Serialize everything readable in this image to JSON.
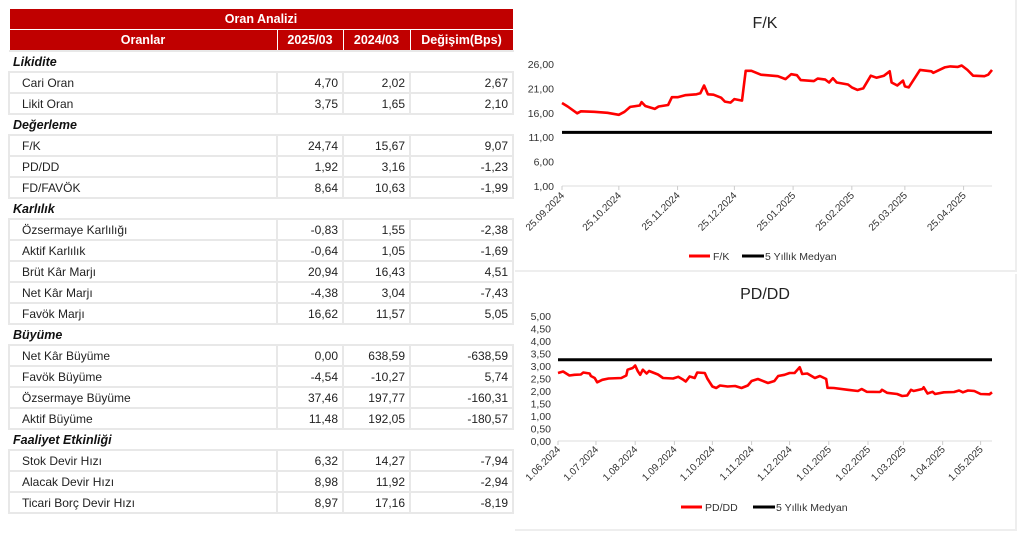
{
  "table": {
    "title": "Oran Analizi",
    "headers": [
      "Oranlar",
      "2025/03",
      "2024/03",
      "Değişim(Bps)"
    ],
    "rows": [
      {
        "section": "Likidite"
      },
      {
        "label": "Cari Oran",
        "values": [
          "4,70",
          "2,02",
          "2,67"
        ]
      },
      {
        "label": "Likit Oran",
        "values": [
          "3,75",
          "1,65",
          "2,10"
        ]
      },
      {
        "section": "Değerleme"
      },
      {
        "label": "F/K",
        "values": [
          "24,74",
          "15,67",
          "9,07"
        ]
      },
      {
        "label": "PD/DD",
        "values": [
          "1,92",
          "3,16",
          "-1,23"
        ]
      },
      {
        "label": "FD/FAVÖK",
        "values": [
          "8,64",
          "10,63",
          "-1,99"
        ]
      },
      {
        "section": "Karlılık"
      },
      {
        "label": "Özsermaye Karlılığı",
        "values": [
          "-0,83",
          "1,55",
          "-2,38"
        ]
      },
      {
        "label": "Aktif Karlılık",
        "values": [
          "-0,64",
          "1,05",
          "-1,69"
        ]
      },
      {
        "label": "Brüt Kâr Marjı",
        "values": [
          "20,94",
          "16,43",
          "4,51"
        ]
      },
      {
        "label": "Net Kâr Marjı",
        "values": [
          "-4,38",
          "3,04",
          "-7,43"
        ]
      },
      {
        "label": "Favök Marjı",
        "values": [
          "16,62",
          "11,57",
          "5,05"
        ]
      },
      {
        "section": "Büyüme"
      },
      {
        "label": "Net Kâr Büyüme",
        "values": [
          "0,00",
          "638,59",
          "-638,59"
        ]
      },
      {
        "label": "Favök Büyüme",
        "values": [
          "-4,54",
          "-10,27",
          "5,74"
        ]
      },
      {
        "label": "Özsermaye Büyüme",
        "values": [
          "37,46",
          "197,77",
          "-160,31"
        ]
      },
      {
        "label": "Aktif Büyüme",
        "values": [
          "11,48",
          "192,05",
          "-180,57"
        ]
      },
      {
        "section": "Faaliyet Etkinliği"
      },
      {
        "label": "Stok Devir Hızı",
        "values": [
          "6,32",
          "14,27",
          "-7,94"
        ]
      },
      {
        "label": "Alacak Devir Hızı",
        "values": [
          "8,98",
          "11,92",
          "-2,94"
        ]
      },
      {
        "label": "Ticari Borç Devir Hızı",
        "values": [
          "8,97",
          "17,16",
          "-8,19"
        ]
      }
    ]
  },
  "chart_data": [
    {
      "type": "line",
      "title": "F/K",
      "xlim": [
        "2024-09-25",
        "2025-05-10"
      ],
      "ylim": [
        1,
        26
      ],
      "yticks": [
        "1,00",
        "6,00",
        "11,00",
        "16,00",
        "21,00",
        "26,00"
      ],
      "ytick_values": [
        1,
        6,
        11,
        16,
        21,
        26
      ],
      "xticks": [
        "25.09.2024",
        "25.10.2024",
        "25.11.2024",
        "25.12.2024",
        "25.01.2025",
        "25.02.2025",
        "25.03.2025",
        "25.04.2025"
      ],
      "xtick_dates": [
        "2024-09-25",
        "2024-10-25",
        "2024-11-25",
        "2024-12-25",
        "2025-01-25",
        "2025-02-25",
        "2025-03-25",
        "2025-04-25"
      ],
      "legend": "bottom",
      "colors": {
        "series": "#ff0000",
        "median": "#000000"
      },
      "series": [
        {
          "name": "F/K",
          "points": [
            [
              "2024-09-25",
              18.0
            ],
            [
              "2024-09-28",
              17.3
            ],
            [
              "2024-10-03",
              15.9
            ],
            [
              "2024-10-05",
              16.3
            ],
            [
              "2024-10-12",
              16.2
            ],
            [
              "2024-10-19",
              16.0
            ],
            [
              "2024-10-25",
              15.6
            ],
            [
              "2024-10-28",
              16.2
            ],
            [
              "2024-10-31",
              17.2
            ],
            [
              "2024-11-05",
              17.5
            ],
            [
              "2024-11-06",
              18.2
            ],
            [
              "2024-11-08",
              17.4
            ],
            [
              "2024-11-13",
              16.8
            ],
            [
              "2024-11-15",
              17.3
            ],
            [
              "2024-11-20",
              17.6
            ],
            [
              "2024-11-22",
              19.2
            ],
            [
              "2024-11-25",
              19.2
            ],
            [
              "2024-11-29",
              19.6
            ],
            [
              "2024-12-05",
              19.8
            ],
            [
              "2024-12-07",
              20.0
            ],
            [
              "2024-12-09",
              21.6
            ],
            [
              "2024-12-11",
              19.8
            ],
            [
              "2024-12-14",
              19.7
            ],
            [
              "2024-12-18",
              19.1
            ],
            [
              "2024-12-20",
              18.3
            ],
            [
              "2024-12-23",
              18.1
            ],
            [
              "2024-12-25",
              18.8
            ],
            [
              "2024-12-29",
              18.5
            ],
            [
              "2024-12-31",
              24.6
            ],
            [
              "2025-01-03",
              24.6
            ],
            [
              "2025-01-08",
              23.8
            ],
            [
              "2025-01-11",
              23.7
            ],
            [
              "2025-01-17",
              23.5
            ],
            [
              "2025-01-21",
              22.9
            ],
            [
              "2025-01-24",
              23.9
            ],
            [
              "2025-01-27",
              23.7
            ],
            [
              "2025-01-29",
              22.7
            ],
            [
              "2025-02-05",
              22.5
            ],
            [
              "2025-02-07",
              23.0
            ],
            [
              "2025-02-11",
              22.8
            ],
            [
              "2025-02-13",
              22.2
            ],
            [
              "2025-02-15",
              23.1
            ],
            [
              "2025-02-17",
              22.2
            ],
            [
              "2025-02-23",
              21.8
            ],
            [
              "2025-02-25",
              21.2
            ],
            [
              "2025-02-28",
              20.7
            ],
            [
              "2025-03-03",
              21.0
            ],
            [
              "2025-03-07",
              23.6
            ],
            [
              "2025-03-10",
              23.2
            ],
            [
              "2025-03-14",
              23.6
            ],
            [
              "2025-03-17",
              24.5
            ],
            [
              "2025-03-18",
              22.2
            ],
            [
              "2025-03-21",
              21.6
            ],
            [
              "2025-03-24",
              22.6
            ],
            [
              "2025-03-25",
              21.4
            ],
            [
              "2025-03-27",
              21.2
            ],
            [
              "2025-04-02",
              24.8
            ],
            [
              "2025-04-08",
              24.5
            ],
            [
              "2025-04-09",
              24.2
            ],
            [
              "2025-04-15",
              25.3
            ],
            [
              "2025-04-18",
              25.5
            ],
            [
              "2025-04-22",
              25.4
            ],
            [
              "2025-04-24",
              25.7
            ],
            [
              "2025-04-27",
              24.8
            ],
            [
              "2025-04-30",
              23.6
            ],
            [
              "2025-05-06",
              23.5
            ],
            [
              "2025-05-08",
              23.8
            ],
            [
              "2025-05-10",
              24.8
            ]
          ]
        },
        {
          "name": "5 Yıllık Medyan",
          "value": 12.0
        }
      ]
    },
    {
      "type": "line",
      "title": "PD/DD",
      "xlim": [
        "2024-06-01",
        "2025-05-10"
      ],
      "ylim": [
        0,
        5
      ],
      "yticks": [
        "0,00",
        "0,50",
        "1,00",
        "1,50",
        "2,00",
        "2,50",
        "3,00",
        "3,50",
        "4,00",
        "4,50",
        "5,00"
      ],
      "ytick_values": [
        0,
        0.5,
        1,
        1.5,
        2,
        2.5,
        3,
        3.5,
        4,
        4.5,
        5
      ],
      "xticks": [
        "1.06.2024",
        "1.07.2024",
        "1.08.2024",
        "1.09.2024",
        "1.10.2024",
        "1.11.2024",
        "1.12.2024",
        "1.01.2025",
        "1.02.2025",
        "1.03.2025",
        "1.04.2025",
        "1.05.2025"
      ],
      "xtick_dates": [
        "2024-06-01",
        "2024-07-01",
        "2024-08-01",
        "2024-09-01",
        "2024-10-01",
        "2024-11-01",
        "2024-12-01",
        "2025-01-01",
        "2025-02-01",
        "2025-03-01",
        "2025-04-01",
        "2025-05-01"
      ],
      "legend": "bottom",
      "colors": {
        "series": "#ff0000",
        "median": "#000000"
      },
      "series": [
        {
          "name": "PD/DD",
          "points": [
            [
              "2024-06-01",
              2.72
            ],
            [
              "2024-06-05",
              2.78
            ],
            [
              "2024-06-10",
              2.62
            ],
            [
              "2024-06-14",
              2.65
            ],
            [
              "2024-06-19",
              2.66
            ],
            [
              "2024-06-21",
              2.74
            ],
            [
              "2024-06-26",
              2.7
            ],
            [
              "2024-06-27",
              2.6
            ],
            [
              "2024-06-30",
              2.52
            ],
            [
              "2024-07-02",
              2.35
            ],
            [
              "2024-07-06",
              2.45
            ],
            [
              "2024-07-11",
              2.5
            ],
            [
              "2024-07-21",
              2.52
            ],
            [
              "2024-07-25",
              2.62
            ],
            [
              "2024-07-26",
              2.85
            ],
            [
              "2024-07-30",
              2.92
            ],
            [
              "2024-08-01",
              3.02
            ],
            [
              "2024-08-03",
              2.8
            ],
            [
              "2024-08-05",
              2.65
            ],
            [
              "2024-08-07",
              2.85
            ],
            [
              "2024-08-10",
              2.7
            ],
            [
              "2024-08-12",
              2.8
            ],
            [
              "2024-08-19",
              2.66
            ],
            [
              "2024-08-23",
              2.52
            ],
            [
              "2024-08-31",
              2.5
            ],
            [
              "2024-09-04",
              2.57
            ],
            [
              "2024-09-08",
              2.45
            ],
            [
              "2024-09-10",
              2.38
            ],
            [
              "2024-09-13",
              2.58
            ],
            [
              "2024-09-17",
              2.52
            ],
            [
              "2024-09-19",
              2.74
            ],
            [
              "2024-09-25",
              2.72
            ],
            [
              "2024-09-27",
              2.5
            ],
            [
              "2024-10-01",
              2.18
            ],
            [
              "2024-10-04",
              2.12
            ],
            [
              "2024-10-07",
              2.22
            ],
            [
              "2024-10-13",
              2.18
            ],
            [
              "2024-10-19",
              2.2
            ],
            [
              "2024-10-24",
              2.12
            ],
            [
              "2024-10-29",
              2.22
            ],
            [
              "2024-11-01",
              2.4
            ],
            [
              "2024-11-06",
              2.48
            ],
            [
              "2024-11-14",
              2.32
            ],
            [
              "2024-11-19",
              2.4
            ],
            [
              "2024-11-22",
              2.6
            ],
            [
              "2024-11-27",
              2.65
            ],
            [
              "2024-12-01",
              2.72
            ],
            [
              "2024-12-05",
              2.72
            ],
            [
              "2024-12-09",
              2.95
            ],
            [
              "2024-12-11",
              2.68
            ],
            [
              "2024-12-15",
              2.7
            ],
            [
              "2024-12-21",
              2.52
            ],
            [
              "2024-12-25",
              2.6
            ],
            [
              "2024-12-30",
              2.48
            ],
            [
              "2024-12-31",
              2.13
            ],
            [
              "2025-01-05",
              2.12
            ],
            [
              "2025-01-16",
              2.05
            ],
            [
              "2025-01-24",
              2.0
            ],
            [
              "2025-01-27",
              2.08
            ],
            [
              "2025-01-31",
              1.97
            ],
            [
              "2025-02-10",
              1.96
            ],
            [
              "2025-02-11",
              1.98
            ],
            [
              "2025-02-12",
              2.05
            ],
            [
              "2025-02-16",
              1.93
            ],
            [
              "2025-02-24",
              1.88
            ],
            [
              "2025-02-28",
              1.8
            ],
            [
              "2025-03-04",
              1.82
            ],
            [
              "2025-03-07",
              2.05
            ],
            [
              "2025-03-09",
              2.0
            ],
            [
              "2025-03-16",
              2.08
            ],
            [
              "2025-03-17",
              2.15
            ],
            [
              "2025-03-20",
              1.9
            ],
            [
              "2025-03-24",
              1.97
            ],
            [
              "2025-03-26",
              1.88
            ],
            [
              "2025-04-02",
              1.95
            ],
            [
              "2025-04-10",
              1.96
            ],
            [
              "2025-04-14",
              2.02
            ],
            [
              "2025-04-17",
              1.95
            ],
            [
              "2025-04-21",
              2.02
            ],
            [
              "2025-04-26",
              2.0
            ],
            [
              "2025-05-01",
              1.88
            ],
            [
              "2025-05-08",
              1.87
            ],
            [
              "2025-05-10",
              1.95
            ]
          ]
        },
        {
          "name": "5 Yıllık Medyan",
          "value": 3.25
        }
      ]
    }
  ]
}
